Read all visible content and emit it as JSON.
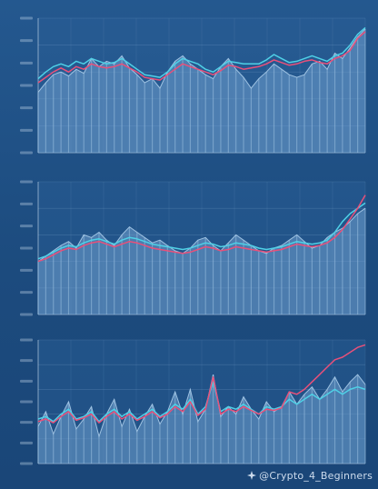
{
  "watermark": {
    "text": "@Crypto_4_Beginners"
  },
  "colors": {
    "area": "#6f9fce",
    "area_edge": "#a9cbe9",
    "grid": "#7ea6cf",
    "cyan": "#4fd0e6",
    "red": "#e8507a",
    "tick": "#cfdff0"
  },
  "chart_data": [
    {
      "type": "line",
      "title": "",
      "ylim": [
        0,
        100
      ],
      "grid": true,
      "series": [
        {
          "values": [
            45,
            52,
            58,
            60,
            57,
            62,
            59,
            70,
            64,
            68,
            66,
            72,
            63,
            58,
            52,
            55,
            48,
            60,
            68,
            72,
            66,
            62,
            58,
            55,
            64,
            70,
            62,
            56,
            48,
            55,
            60,
            66,
            62,
            58,
            56,
            58,
            66,
            68,
            62,
            74,
            70,
            78,
            86,
            92
          ],
          "style": "area"
        },
        {
          "values": [
            55,
            60,
            64,
            66,
            64,
            68,
            66,
            70,
            68,
            66,
            67,
            70,
            66,
            62,
            58,
            57,
            56,
            60,
            66,
            70,
            68,
            66,
            62,
            60,
            64,
            68,
            67,
            66,
            66,
            66,
            69,
            73,
            70,
            67,
            68,
            70,
            72,
            70,
            68,
            72,
            74,
            80,
            88,
            93
          ],
          "style": "cyan"
        },
        {
          "values": [
            52,
            56,
            60,
            63,
            60,
            64,
            62,
            66,
            64,
            63,
            64,
            66,
            63,
            60,
            56,
            55,
            54,
            58,
            62,
            66,
            64,
            62,
            60,
            58,
            61,
            65,
            64,
            62,
            63,
            64,
            66,
            69,
            67,
            65,
            66,
            68,
            69,
            67,
            66,
            70,
            72,
            76,
            85,
            90
          ],
          "style": "red"
        }
      ]
    },
    {
      "type": "line",
      "title": "",
      "ylim": [
        0,
        100
      ],
      "grid": true,
      "series": [
        {
          "values": [
            40,
            44,
            48,
            52,
            55,
            50,
            60,
            58,
            62,
            56,
            52,
            60,
            66,
            62,
            58,
            54,
            56,
            52,
            48,
            46,
            50,
            56,
            58,
            52,
            48,
            54,
            60,
            56,
            52,
            48,
            46,
            50,
            52,
            56,
            60,
            55,
            50,
            52,
            58,
            62,
            65,
            70,
            76,
            80
          ],
          "style": "area"
        },
        {
          "values": [
            42,
            44,
            47,
            50,
            52,
            51,
            54,
            56,
            57,
            55,
            53,
            56,
            58,
            57,
            55,
            53,
            52,
            51,
            50,
            49,
            50,
            52,
            54,
            53,
            51,
            52,
            54,
            53,
            52,
            50,
            49,
            50,
            51,
            53,
            55,
            54,
            53,
            54,
            56,
            62,
            70,
            76,
            80,
            84
          ],
          "style": "cyan"
        },
        {
          "values": [
            40,
            42,
            45,
            48,
            50,
            49,
            52,
            54,
            55,
            53,
            51,
            53,
            55,
            54,
            52,
            50,
            49,
            48,
            47,
            46,
            47,
            49,
            51,
            50,
            48,
            49,
            51,
            50,
            49,
            48,
            47,
            48,
            49,
            51,
            53,
            52,
            51,
            52,
            54,
            58,
            64,
            72,
            80,
            90
          ],
          "style": "red"
        }
      ]
    },
    {
      "type": "line",
      "title": "",
      "ylim": [
        0,
        100
      ],
      "grid": true,
      "series": [
        {
          "values": [
            30,
            42,
            24,
            38,
            50,
            28,
            36,
            46,
            22,
            40,
            52,
            30,
            44,
            26,
            38,
            48,
            32,
            42,
            58,
            40,
            60,
            34,
            44,
            72,
            38,
            46,
            40,
            54,
            44,
            36,
            50,
            42,
            46,
            58,
            48,
            56,
            62,
            52,
            60,
            70,
            58,
            66,
            72,
            64
          ],
          "style": "area"
        },
        {
          "values": [
            36,
            38,
            34,
            40,
            44,
            36,
            38,
            42,
            34,
            40,
            44,
            38,
            42,
            36,
            40,
            44,
            38,
            42,
            48,
            44,
            52,
            40,
            46,
            66,
            42,
            46,
            44,
            48,
            44,
            40,
            46,
            44,
            46,
            52,
            48,
            52,
            56,
            52,
            56,
            60,
            56,
            60,
            62,
            60
          ],
          "style": "cyan"
        },
        {
          "values": [
            34,
            36,
            33,
            38,
            42,
            35,
            37,
            40,
            33,
            38,
            42,
            36,
            40,
            35,
            38,
            42,
            37,
            40,
            46,
            42,
            50,
            39,
            44,
            70,
            40,
            44,
            42,
            46,
            43,
            40,
            44,
            43,
            45,
            58,
            56,
            60,
            66,
            72,
            78,
            84,
            86,
            90,
            94,
            96
          ],
          "style": "red"
        }
      ]
    }
  ]
}
